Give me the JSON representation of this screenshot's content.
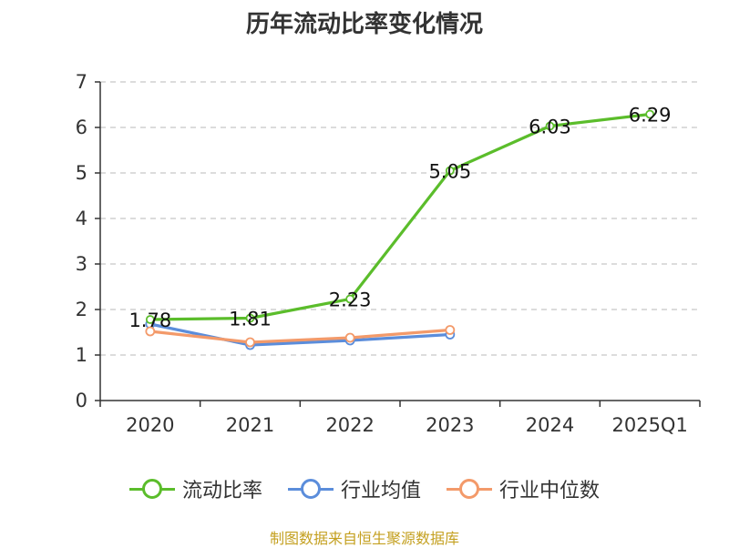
{
  "chart_data": {
    "type": "line",
    "title": "历年流动比率变化情况",
    "categories": [
      "2020",
      "2021",
      "2022",
      "2023",
      "2024",
      "2025Q1"
    ],
    "ylim": [
      0,
      7
    ],
    "yticks": [
      0,
      1,
      2,
      3,
      4,
      5,
      6,
      7
    ],
    "grid": true,
    "legend_position": "bottom",
    "series": [
      {
        "name": "流动比率",
        "color": "#5bbd2b",
        "values": [
          1.78,
          1.81,
          2.23,
          5.05,
          6.03,
          6.29
        ],
        "labels": [
          "1.78",
          "1.81",
          "2.23",
          "5.05",
          "6.03",
          "6.29"
        ]
      },
      {
        "name": "行业均值",
        "color": "#5b8ddb",
        "values": [
          1.68,
          1.22,
          1.32,
          1.45,
          null,
          null
        ]
      },
      {
        "name": "行业中位数",
        "color": "#f39a6a",
        "values": [
          1.52,
          1.28,
          1.38,
          1.55,
          null,
          null
        ]
      }
    ]
  },
  "source_text": "制图数据来自恒生聚源数据库"
}
